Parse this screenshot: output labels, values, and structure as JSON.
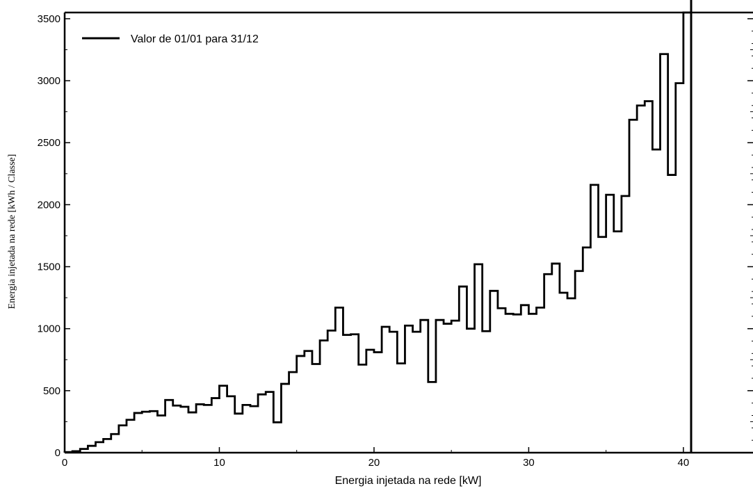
{
  "chart_data": {
    "type": "line",
    "step": true,
    "xlabel": "Energia injetada na rede [kW]",
    "ylabel": "Energia injetada na rede [kWh / Classe]",
    "xlim": [
      0,
      44.5
    ],
    "ylim": [
      0,
      3550
    ],
    "x_ticks": [
      0,
      10,
      20,
      30,
      40
    ],
    "y_ticks": [
      0,
      500,
      1000,
      1500,
      2000,
      2500,
      3000,
      3500
    ],
    "grid": false,
    "legend_position": "top-left",
    "vertical_line_x": 40.5,
    "series": [
      {
        "name": "Valor de 01/01 para 31/12",
        "color": "#000000",
        "bin_width": 0.5,
        "values": [
          5,
          12,
          30,
          55,
          85,
          110,
          150,
          220,
          265,
          320,
          330,
          335,
          300,
          425,
          380,
          370,
          325,
          390,
          385,
          440,
          540,
          455,
          315,
          385,
          375,
          470,
          490,
          245,
          555,
          650,
          780,
          820,
          715,
          905,
          985,
          1170,
          950,
          955,
          710,
          830,
          810,
          1015,
          975,
          720,
          1025,
          975,
          1070,
          570,
          1070,
          1040,
          1065,
          1340,
          1000,
          1520,
          980,
          1305,
          1165,
          1120,
          1115,
          1190,
          1120,
          1170,
          1440,
          1525,
          1290,
          1245,
          1465,
          1655,
          2160,
          1740,
          2080,
          1785,
          2070,
          2685,
          2800,
          2835,
          2445,
          3215,
          2240,
          2980,
          3550
        ]
      }
    ]
  }
}
